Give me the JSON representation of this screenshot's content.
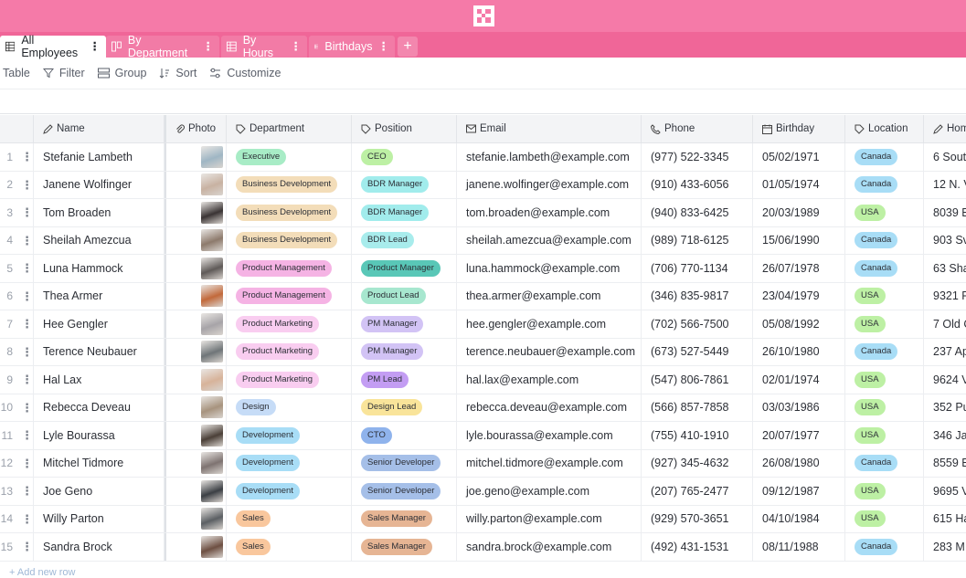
{
  "tabs": [
    {
      "label": "All Employees",
      "icon": "grid-icon",
      "active": true
    },
    {
      "label": "By Department",
      "icon": "kanban-icon",
      "active": false
    },
    {
      "label": "By Hours",
      "icon": "grid-icon",
      "active": false
    },
    {
      "label": "Birthdays",
      "icon": "grid-icon",
      "active": false
    }
  ],
  "add_tab_label": "+",
  "toolbar": {
    "view_type": "Table",
    "filter": "Filter",
    "group": "Group",
    "sort": "Sort",
    "customize": "Customize"
  },
  "columns": [
    "Name",
    "Photo",
    "Department",
    "Position",
    "Email",
    "Phone",
    "Birthday",
    "Location",
    "Hom"
  ],
  "rows": [
    {
      "n": "1",
      "name": "Stefanie Lambeth",
      "dept": "Executive",
      "pos": "CEO",
      "email": "stefanie.lambeth@example.com",
      "phone": "(977) 522-3345",
      "bday": "05/02/1971",
      "loc": "Canada",
      "home": "6 Sout"
    },
    {
      "n": "2",
      "name": "Janene Wolfinger",
      "dept": "Business Development",
      "pos": "BDR Manager",
      "email": "janene.wolfinger@example.com",
      "phone": "(910) 433-6056",
      "bday": "01/05/1974",
      "loc": "Canada",
      "home": "12 N. V"
    },
    {
      "n": "3",
      "name": "Tom Broaden",
      "dept": "Business Development",
      "pos": "BDR Manager",
      "email": "tom.broaden@example.com",
      "phone": "(940) 833-6425",
      "bday": "20/03/1989",
      "loc": "USA",
      "home": "8039 E"
    },
    {
      "n": "4",
      "name": "Sheilah Amezcua",
      "dept": "Business Development",
      "pos": "BDR Lead",
      "email": "sheilah.amezcua@example.com",
      "phone": "(989) 718-6125",
      "bday": "15/06/1990",
      "loc": "Canada",
      "home": "903 Sv"
    },
    {
      "n": "5",
      "name": "Luna Hammock",
      "dept": "Product Management",
      "pos": "Product Manager",
      "email": "luna.hammock@example.com",
      "phone": "(706) 770-1134",
      "bday": "26/07/1978",
      "loc": "Canada",
      "home": "63 Sha"
    },
    {
      "n": "6",
      "name": "Thea Armer",
      "dept": "Product Management",
      "pos": "Product Lead",
      "email": "thea.armer@example.com",
      "phone": "(346) 835-9817",
      "bday": "23/04/1979",
      "loc": "USA",
      "home": "9321 R"
    },
    {
      "n": "7",
      "name": "Hee Gengler",
      "dept": "Product Marketing",
      "pos": "PM Manager",
      "email": "hee.gengler@example.com",
      "phone": "(702) 566-7500",
      "bday": "05/08/1992",
      "loc": "USA",
      "home": "7 Old C"
    },
    {
      "n": "8",
      "name": "Terence Neubauer",
      "dept": "Product Marketing",
      "pos": "PM Manager",
      "email": "terence.neubauer@example.com",
      "phone": "(673) 527-5449",
      "bday": "26/10/1980",
      "loc": "Canada",
      "home": "237 Ap"
    },
    {
      "n": "9",
      "name": "Hal Lax",
      "dept": "Product Marketing",
      "pos": "PM Lead",
      "email": "hal.lax@example.com",
      "phone": "(547) 806-7861",
      "bday": "02/01/1974",
      "loc": "USA",
      "home": "9624 V"
    },
    {
      "n": "10",
      "name": "Rebecca Deveau",
      "dept": "Design",
      "pos": "Design Lead",
      "email": "rebecca.deveau@example.com",
      "phone": "(566) 857-7858",
      "bday": "03/03/1986",
      "loc": "USA",
      "home": "352 Pu"
    },
    {
      "n": "11",
      "name": "Lyle Bourassa",
      "dept": "Development",
      "pos": "CTO",
      "email": "lyle.bourassa@example.com",
      "phone": "(755) 410-1910",
      "bday": "20/07/1977",
      "loc": "USA",
      "home": "346 Ja"
    },
    {
      "n": "12",
      "name": "Mitchel Tidmore",
      "dept": "Development",
      "pos": "Senior Developer",
      "email": "mitchel.tidmore@example.com",
      "phone": "(927) 345-4632",
      "bday": "26/08/1980",
      "loc": "Canada",
      "home": "8559 E"
    },
    {
      "n": "13",
      "name": "Joe Geno",
      "dept": "Development",
      "pos": "Senior Developer",
      "email": "joe.geno@example.com",
      "phone": "(207) 765-2477",
      "bday": "09/12/1987",
      "loc": "USA",
      "home": "9695 V"
    },
    {
      "n": "14",
      "name": "Willy Parton",
      "dept": "Sales",
      "pos": "Sales Manager",
      "email": "willy.parton@example.com",
      "phone": "(929) 570-3651",
      "bday": "04/10/1984",
      "loc": "USA",
      "home": "615 Ha"
    },
    {
      "n": "15",
      "name": "Sandra Brock",
      "dept": "Sales",
      "pos": "Sales Manager",
      "email": "sandra.brock@example.com",
      "phone": "(492) 431-1531",
      "bday": "08/11/1988",
      "loc": "Canada",
      "home": "283 M"
    }
  ],
  "add_row": "+ Add new row",
  "colors": {
    "topbar": "#f57aa8",
    "tabbar": "#f06698",
    "dept": {
      "Executive": "#a8ecc6",
      "Business Development": "#f3ddb9",
      "Product Management": "#f5b3e4",
      "Product Marketing": "#f9cdf0",
      "Design": "#c6dcf7",
      "Development": "#a8ddf6",
      "Sales": "#f9c79d"
    },
    "pos": {
      "CEO": "#bdf0a4",
      "BDR Manager": "#a1ecec",
      "BDR Lead": "#a8ecec",
      "Product Manager": "#59c7b7",
      "Product Lead": "#a7e7cf",
      "PM Manager": "#d2c3f5",
      "PM Lead": "#c39df3",
      "Design Lead": "#f9e49a",
      "CTO": "#8fb3ec",
      "Senior Developer": "#a5bfe8",
      "Sales Manager": "#e6b594"
    },
    "loc": {
      "Canada": "#a8ddf6",
      "USA": "#bdf0a4"
    },
    "photos": [
      "#9fb6c4",
      "#c8b2a2",
      "#3a3434",
      "#8d7a6c",
      "#5f5a58",
      "#c2693b",
      "#a7a4a8",
      "#6f7578",
      "#d7b39a",
      "#a7937e",
      "#4b4038",
      "#7e7371",
      "#3b3f44",
      "#5b5f63",
      "#6d4f42"
    ]
  }
}
